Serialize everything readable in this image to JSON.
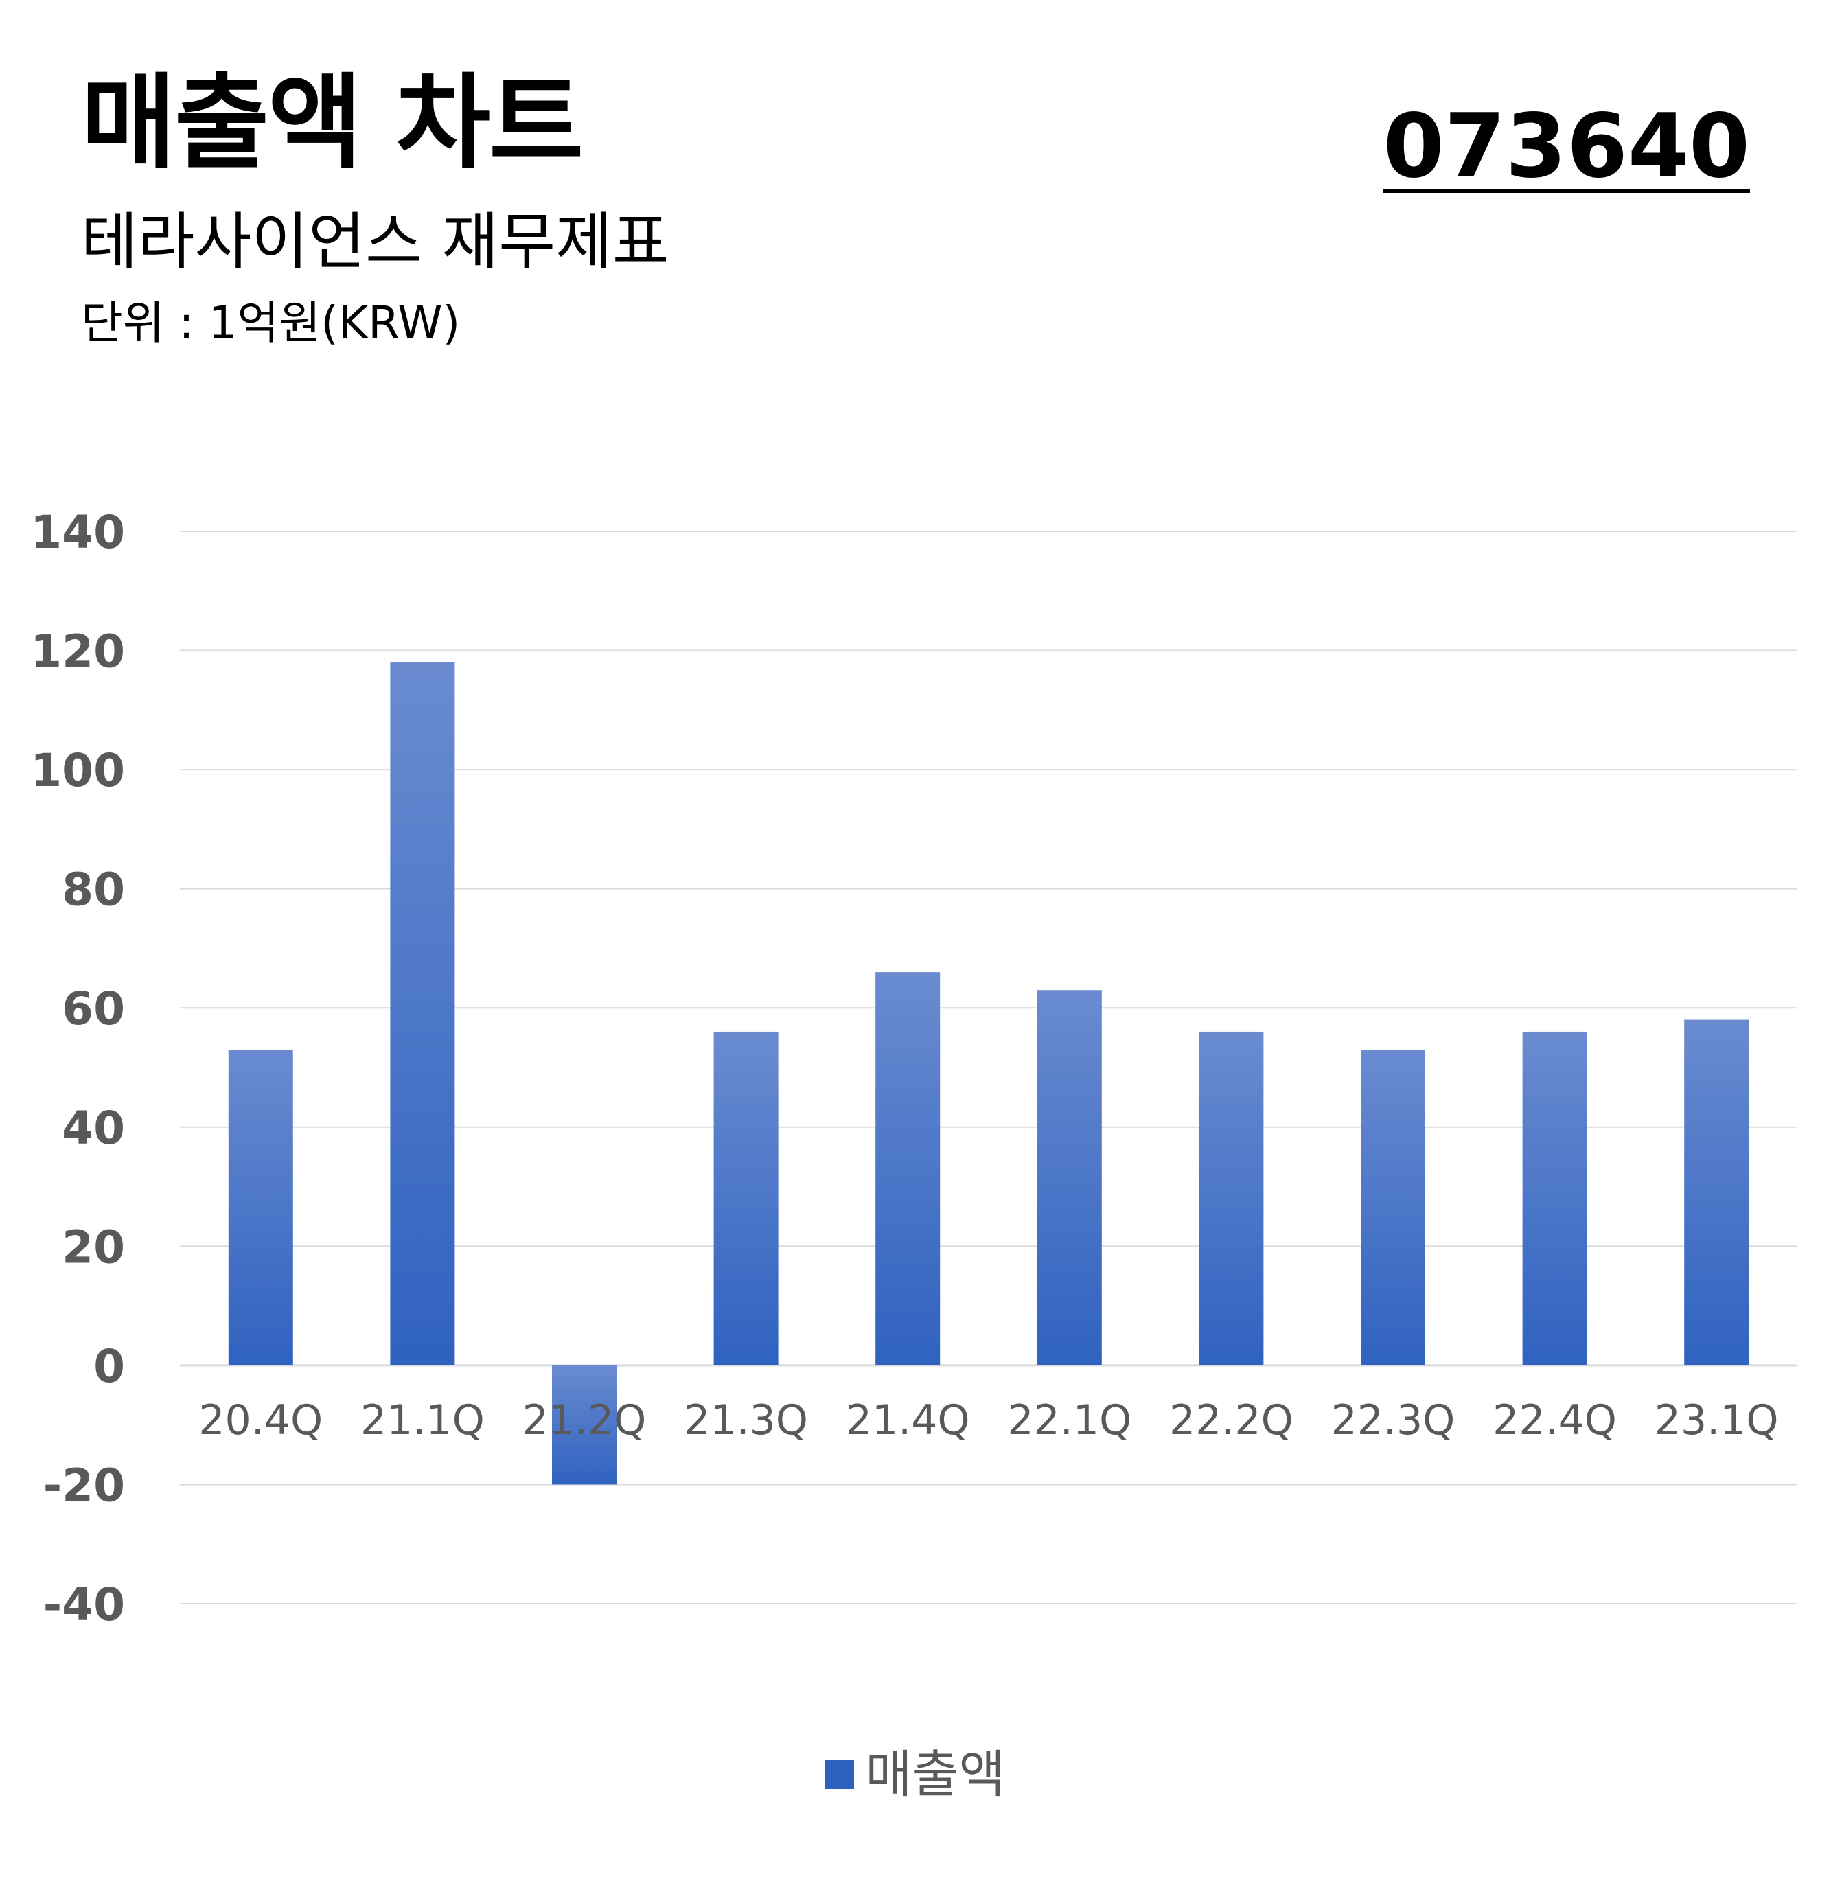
{
  "header": {
    "title": "매출액 차트",
    "subtitle": "테라사이언스 재무제표",
    "unit": "단위 : 1억원(KRW)",
    "code": "073640"
  },
  "colors": {
    "bar_top": "#6a8bd0",
    "bar_bottom": "#2f62c0",
    "grid": "#d9d9d9",
    "axis_text": "#595959"
  },
  "chart_data": {
    "type": "bar",
    "categories": [
      "20.4Q",
      "21.1Q",
      "21.2Q",
      "21.3Q",
      "21.4Q",
      "22.1Q",
      "22.2Q",
      "22.3Q",
      "22.4Q",
      "23.1Q"
    ],
    "series": [
      {
        "name": "매출액",
        "values": [
          53,
          118,
          -20,
          56,
          66,
          63,
          56,
          53,
          56,
          58
        ]
      }
    ],
    "ylim": [
      -40,
      140
    ],
    "yticks": [
      140,
      120,
      100,
      80,
      60,
      40,
      20,
      0,
      -20,
      -40
    ],
    "grid": true,
    "legend": "bottom"
  }
}
